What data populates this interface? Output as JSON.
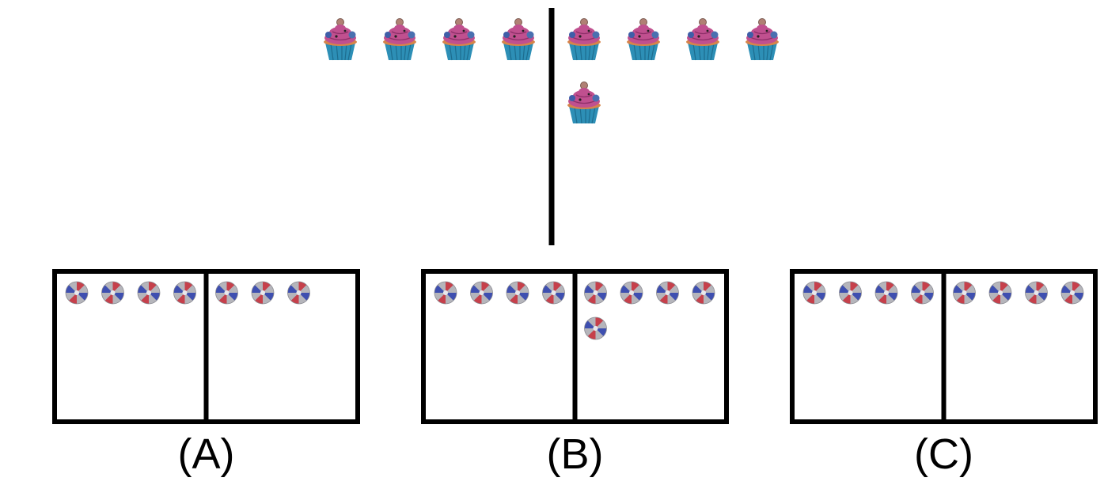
{
  "colors": {
    "line": "#000000",
    "background": "#ffffff",
    "frosting": "#c0508f",
    "frosting_dark": "#8e2f69",
    "cake": "#d6844a",
    "wrapper": "#2d8fb6",
    "wrapper_dark": "#1d6d8f",
    "candy_red": "#c6404b",
    "candy_blue": "#3e4fb0",
    "candy_gray": "#b5b5bb"
  },
  "model": {
    "icon": "cupcake-icon",
    "left_count": 4,
    "right_count": 5
  },
  "options": [
    {
      "label": "(A)",
      "left_count": 4,
      "right_count": 3,
      "icon": "candy-icon"
    },
    {
      "label": "(B)",
      "left_count": 4,
      "right_count": 5,
      "icon": "candy-icon"
    },
    {
      "label": "(C)",
      "left_count": 4,
      "right_count": 4,
      "icon": "candy-icon"
    }
  ]
}
